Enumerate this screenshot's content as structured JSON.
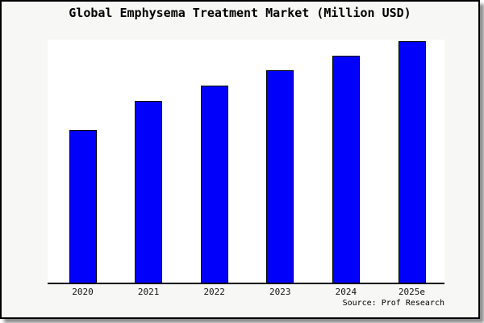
{
  "figure": {
    "title": "Global Emphysema Treatment Market (Million USD)",
    "source_credit": "Source: Prof Research"
  },
  "colors": {
    "bar_fill": "#0000fb",
    "bar_border": "#000000",
    "figure_background": "#f7f7f6",
    "plot_background": "#ffffff",
    "axis_line": "#000000",
    "text": "#000000"
  },
  "chart_data": {
    "type": "bar",
    "title": "Global Emphysema Treatment Market (Million USD)",
    "categories": [
      "2020",
      "2021",
      "2022",
      "2023",
      "2024",
      "2025e"
    ],
    "values": [
      62.9,
      74.8,
      81.1,
      87.4,
      93.4,
      99.3
    ],
    "value_note": "Estimated relative heights (percent of plot height); chart shows no y-axis or numeric labels",
    "xlabel": "",
    "ylabel": "",
    "ylim": [
      0,
      100
    ],
    "grid": false,
    "legend": false,
    "y_axis_visible": false,
    "x_axis_line": true,
    "source": "Source: Prof Research"
  }
}
